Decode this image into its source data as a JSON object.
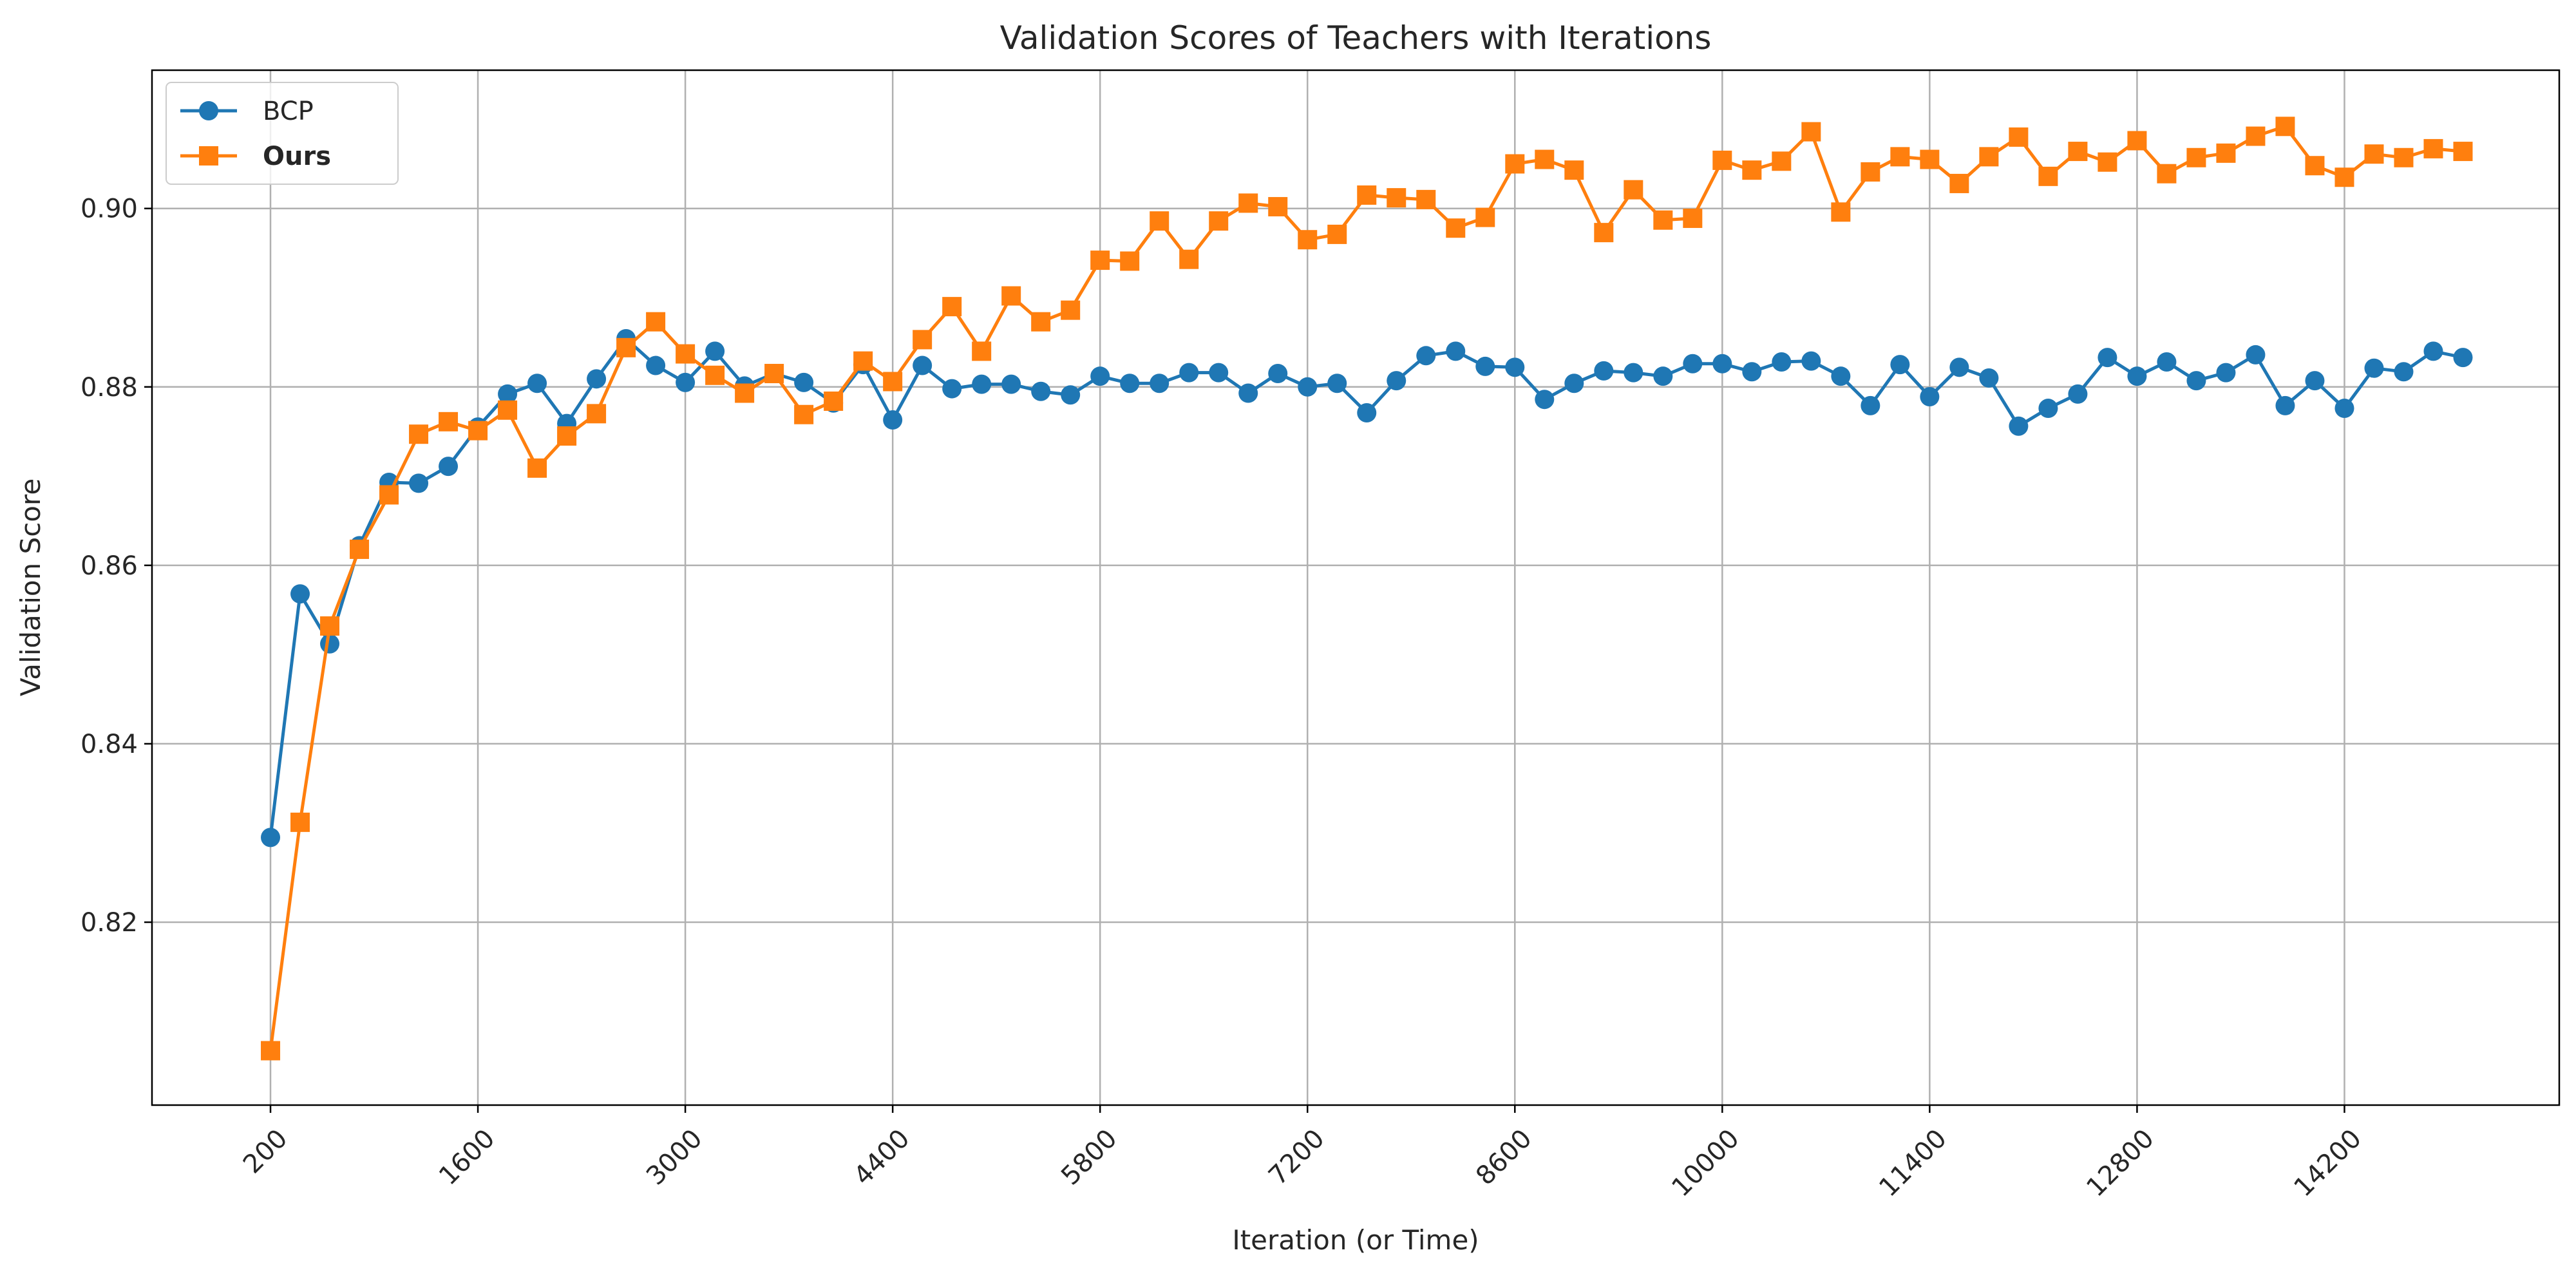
{
  "chart_data": {
    "type": "line",
    "title": "Validation Scores of Teachers with Iterations",
    "xlabel": "Iteration (or Time)",
    "ylabel": "Validation Score",
    "xlim": [
      -600,
      15650
    ],
    "ylim": [
      0.7995,
      0.9155
    ],
    "grid": true,
    "legend_position": "top-left",
    "x_ticks": [
      200,
      1600,
      3000,
      4400,
      5800,
      7200,
      8600,
      10000,
      11400,
      12800,
      14200
    ],
    "x_tick_labels": [
      "200",
      "1600",
      "3000",
      "4400",
      "5800",
      "7200",
      "8600",
      "10000",
      "11400",
      "12800",
      "14200"
    ],
    "y_ticks": [
      0.82,
      0.84,
      0.86,
      0.88,
      0.9
    ],
    "y_tick_labels": [
      "0.82",
      "0.84",
      "0.86",
      "0.88",
      "0.90"
    ],
    "x_start": 200,
    "x_step": 200,
    "series": [
      {
        "name": "BCP",
        "color": "#1f77b4",
        "marker": "circle",
        "values": [
          0.8295,
          0.8568,
          0.8512,
          0.8622,
          0.8693,
          0.8692,
          0.8711,
          0.8755,
          0.8792,
          0.8804,
          0.8759,
          0.8809,
          0.8854,
          0.8824,
          0.8805,
          0.884,
          0.8801,
          0.8815,
          0.8805,
          0.8782,
          0.8825,
          0.8763,
          0.8824,
          0.8798,
          0.8803,
          0.8803,
          0.8795,
          0.8791,
          0.8812,
          0.8804,
          0.8804,
          0.8816,
          0.8816,
          0.8793,
          0.8815,
          0.88,
          0.8804,
          0.8771,
          0.8807,
          0.8835,
          0.884,
          0.8823,
          0.8822,
          0.8786,
          0.8804,
          0.8818,
          0.8816,
          0.8812,
          0.8826,
          0.8826,
          0.8817,
          0.8828,
          0.8829,
          0.8812,
          0.8779,
          0.8825,
          0.8789,
          0.8822,
          0.881,
          0.8756,
          0.8776,
          0.8792,
          0.8833,
          0.8812,
          0.8828,
          0.8807,
          0.8816,
          0.8836,
          0.8779,
          0.8807,
          0.8776,
          0.8821,
          0.8817,
          0.884,
          0.8833
        ]
      },
      {
        "name": "Ours",
        "color": "#ff7f0e",
        "marker": "square",
        "values": [
          0.8056,
          0.8312,
          0.8532,
          0.8618,
          0.8679,
          0.8747,
          0.8761,
          0.8751,
          0.8774,
          0.8709,
          0.8745,
          0.877,
          0.8844,
          0.8873,
          0.8837,
          0.8813,
          0.8793,
          0.8815,
          0.8769,
          0.8784,
          0.8829,
          0.8806,
          0.8853,
          0.889,
          0.884,
          0.8902,
          0.8873,
          0.8886,
          0.8942,
          0.8941,
          0.8986,
          0.8943,
          0.8986,
          0.9006,
          0.9002,
          0.8965,
          0.8971,
          0.9015,
          0.9012,
          0.901,
          0.8978,
          0.899,
          0.905,
          0.9055,
          0.9043,
          0.8973,
          0.9021,
          0.8987,
          0.8989,
          0.9054,
          0.9043,
          0.9053,
          0.9086,
          0.8996,
          0.9041,
          0.9058,
          0.9055,
          0.9028,
          0.9058,
          0.908,
          0.9036,
          0.9064,
          0.9052,
          0.9076,
          0.9039,
          0.9057,
          0.9062,
          0.9081,
          0.9092,
          0.9048,
          0.9035,
          0.9061,
          0.9057,
          0.9067,
          0.9064
        ]
      }
    ]
  }
}
